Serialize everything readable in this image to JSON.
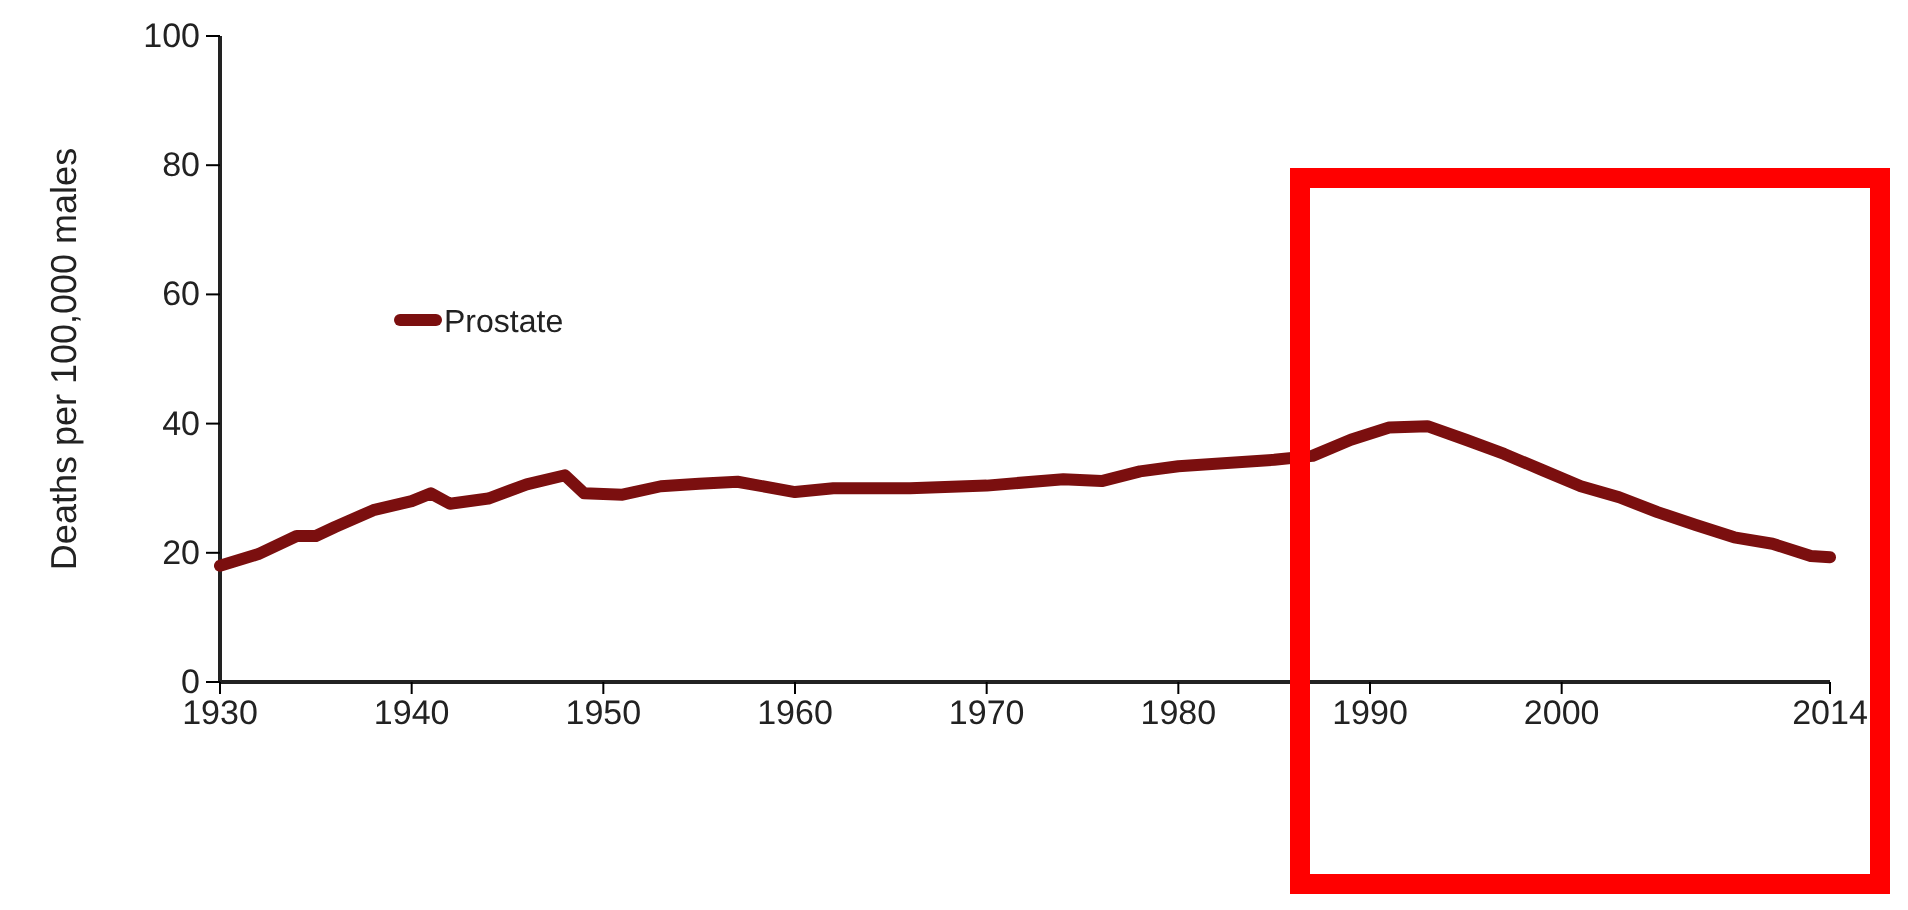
{
  "chart_data": {
    "type": "line",
    "ylabel": "Deaths per 100,000 males",
    "xlim": [
      1930,
      2014
    ],
    "xticks": [
      1930,
      1940,
      1950,
      1960,
      1970,
      1980,
      1990,
      2000,
      2014
    ],
    "ylim": [
      0,
      100
    ],
    "yticks": [
      0,
      20,
      40,
      60,
      80,
      100
    ],
    "legend": "top left",
    "grid": false,
    "x": [
      1930,
      1932,
      1934,
      1935,
      1936,
      1938,
      1940,
      1941,
      1942,
      1944,
      1946,
      1948,
      1949,
      1951,
      1953,
      1955,
      1957,
      1960,
      1962,
      1964,
      1966,
      1970,
      1974,
      1976,
      1978,
      1980,
      1985,
      1987,
      1989,
      1991,
      1993,
      1995,
      1997,
      1999,
      2001,
      2003,
      2005,
      2007,
      2009,
      2011,
      2013,
      2014
    ],
    "series": [
      {
        "name": "Prostate",
        "color": "#7b0f0f",
        "values": [
          18,
          19.8,
          22.6,
          22.6,
          24,
          26.6,
          28,
          29.2,
          27.6,
          28.4,
          30.6,
          32,
          29.2,
          29,
          30.3,
          30.7,
          31,
          29.4,
          30,
          30,
          30,
          30.4,
          31.4,
          31.1,
          32.6,
          33.4,
          34.4,
          35,
          37.5,
          39.4,
          39.6,
          37.5,
          35.3,
          32.8,
          30.3,
          28.6,
          26.3,
          24.3,
          22.4,
          21.4,
          19.5,
          19.3
        ]
      }
    ]
  }
}
